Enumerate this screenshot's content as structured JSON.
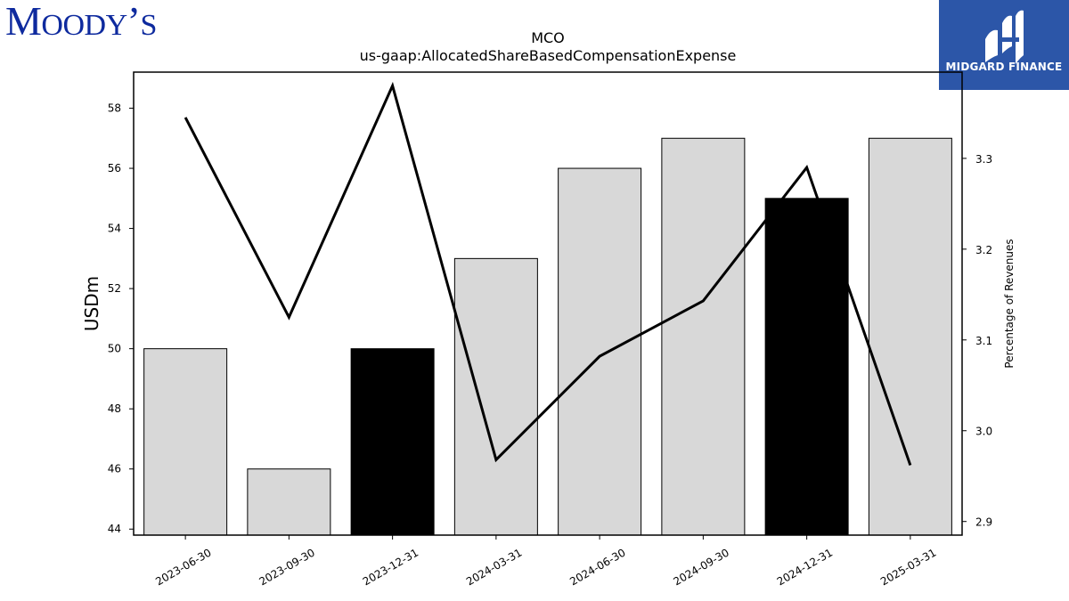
{
  "logos": {
    "left_big": "M",
    "left_small": "OODY",
    "left_apos": "’",
    "left_end": "S",
    "right_name": "MIDGARD FINANCE",
    "right_icon": "midgard-logo-icon"
  },
  "title": {
    "line1": "MCO",
    "line2": "us-gaap:AllocatedShareBasedCompensationExpense"
  },
  "colors": {
    "bar_default": "#d8d8d8",
    "bar_highlight": "#000000",
    "line": "#000000",
    "logo_left": "#0e2a9e",
    "logo_right_bg": "#2c56a8"
  },
  "chart_data": {
    "type": "bar",
    "categories": [
      "2023-06-30",
      "2023-09-30",
      "2023-12-31",
      "2024-03-31",
      "2024-06-30",
      "2024-09-30",
      "2024-12-31",
      "2025-03-31"
    ],
    "series": [
      {
        "axis": "left",
        "type": "bar",
        "values": [
          50,
          46,
          50,
          53,
          56,
          57,
          55,
          57
        ],
        "highlighted": [
          false,
          false,
          true,
          false,
          false,
          false,
          true,
          false
        ]
      },
      {
        "axis": "right",
        "type": "line",
        "values": [
          3.345,
          3.125,
          3.38,
          2.968,
          3.082,
          3.143,
          3.29,
          2.962
        ]
      }
    ],
    "ylabel": "USDm",
    "ylabel_right": "Percentage of Revenues",
    "ylim": [
      43.8,
      59.2
    ],
    "ylim_right": [
      2.885,
      3.395
    ],
    "yticks": [
      44,
      46,
      48,
      50,
      52,
      54,
      56,
      58
    ],
    "yticks_right": [
      2.9,
      3.0,
      3.1,
      3.2,
      3.3
    ],
    "yticks_right_labels": [
      "2.9",
      "3.0",
      "3.1",
      "3.2",
      "3.3"
    ],
    "grid": false,
    "legend": "none"
  }
}
